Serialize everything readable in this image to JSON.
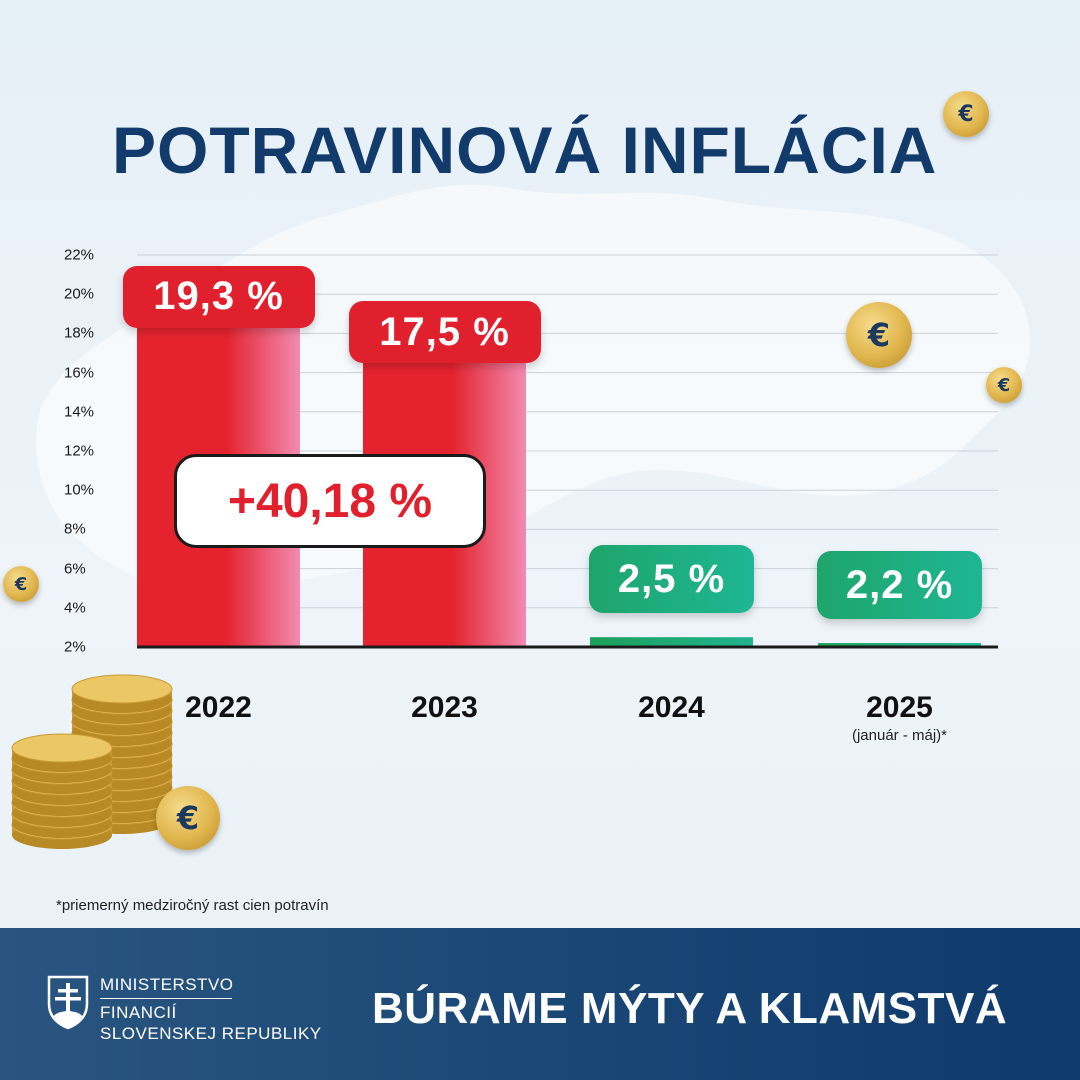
{
  "title": "POTRAVINOVÁ INFLÁCIA",
  "chart_data": {
    "type": "bar",
    "categories": [
      "2022",
      "2023",
      "2024",
      "2025"
    ],
    "category_notes": [
      "",
      "",
      "",
      "(január - máj)*"
    ],
    "values": [
      19.3,
      17.5,
      2.5,
      2.2
    ],
    "value_labels": [
      "19,3 %",
      "17,5 %",
      "2,5 %",
      "2,2 %"
    ],
    "bar_colors": [
      "#e1202d",
      "#e1202d",
      "#1ea56b",
      "#1ea56b"
    ],
    "y_ticks": [
      "2%",
      "4%",
      "6%",
      "8%",
      "10%",
      "12%",
      "14%",
      "16%",
      "18%",
      "20%",
      "22%"
    ],
    "ylim": [
      2,
      22
    ],
    "grid": true,
    "annotation": "+40,18 %"
  },
  "footnote": "*priemerný medziročný rast cien potravín",
  "footer": {
    "ministry_line1": "MINISTERSTVO",
    "ministry_line2": "FINANCIÍ",
    "ministry_line3": "SLOVENSKEJ REPUBLIKY",
    "slogan": "BÚRAME MÝTY A KLAMSTVÁ"
  },
  "coin_symbol": "€",
  "colors": {
    "navy": "#123b6b",
    "red": "#e1202d",
    "green": "#1ea56b",
    "footer": "#1d4a78"
  }
}
